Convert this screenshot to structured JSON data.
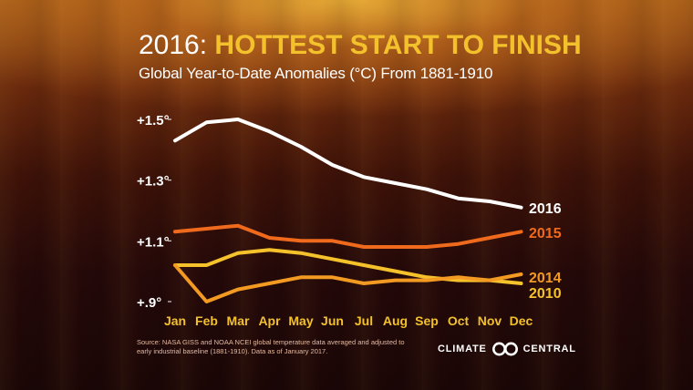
{
  "title": {
    "year": "2016:",
    "headline": "HOTTEST START TO FINISH"
  },
  "subtitle": "Global Year-to-Date Anomalies (°C) From 1881-1910",
  "source": "Source: NASA GISS and NOAA NCEI global temperature data averaged and adjusted to early industrial baseline (1881-1910). Data as of January 2017.",
  "logo": {
    "left": "CLIMATE",
    "right": "CENTRAL"
  },
  "chart_data": {
    "type": "line",
    "title": "2016: HOTTEST START TO FINISH",
    "subtitle": "Global Year-to-Date Anomalies (°C) From 1881-1910",
    "xlabel": "",
    "ylabel": "",
    "categories": [
      "Jan",
      "Feb",
      "Mar",
      "Apr",
      "May",
      "Jun",
      "Jul",
      "Aug",
      "Sep",
      "Oct",
      "Nov",
      "Dec"
    ],
    "yticks": [
      {
        "value": 1.5,
        "label": "+1.5°"
      },
      {
        "value": 1.3,
        "label": "+1.3°"
      },
      {
        "value": 1.1,
        "label": "+1.1°"
      },
      {
        "value": 0.9,
        "label": "+.9°"
      }
    ],
    "ylim": [
      0.88,
      1.52
    ],
    "grid": false,
    "legend": "labels at right end of lines",
    "series": [
      {
        "name": "2016",
        "color": "#ffffff",
        "values": [
          1.43,
          1.49,
          1.5,
          1.46,
          1.41,
          1.35,
          1.31,
          1.29,
          1.27,
          1.24,
          1.23,
          1.21
        ]
      },
      {
        "name": "2015",
        "color": "#ef6a1c",
        "values": [
          1.13,
          1.14,
          1.15,
          1.11,
          1.1,
          1.1,
          1.08,
          1.08,
          1.08,
          1.09,
          1.11,
          1.13
        ]
      },
      {
        "name": "2014",
        "color": "#f29a22",
        "values": [
          1.02,
          0.9,
          0.94,
          0.96,
          0.98,
          0.98,
          0.96,
          0.97,
          0.97,
          0.98,
          0.97,
          0.99
        ]
      },
      {
        "name": "2010",
        "color": "#f6c22c",
        "values": [
          1.02,
          1.02,
          1.06,
          1.07,
          1.06,
          1.04,
          1.02,
          1.0,
          0.98,
          0.97,
          0.97,
          0.96
        ]
      }
    ]
  }
}
